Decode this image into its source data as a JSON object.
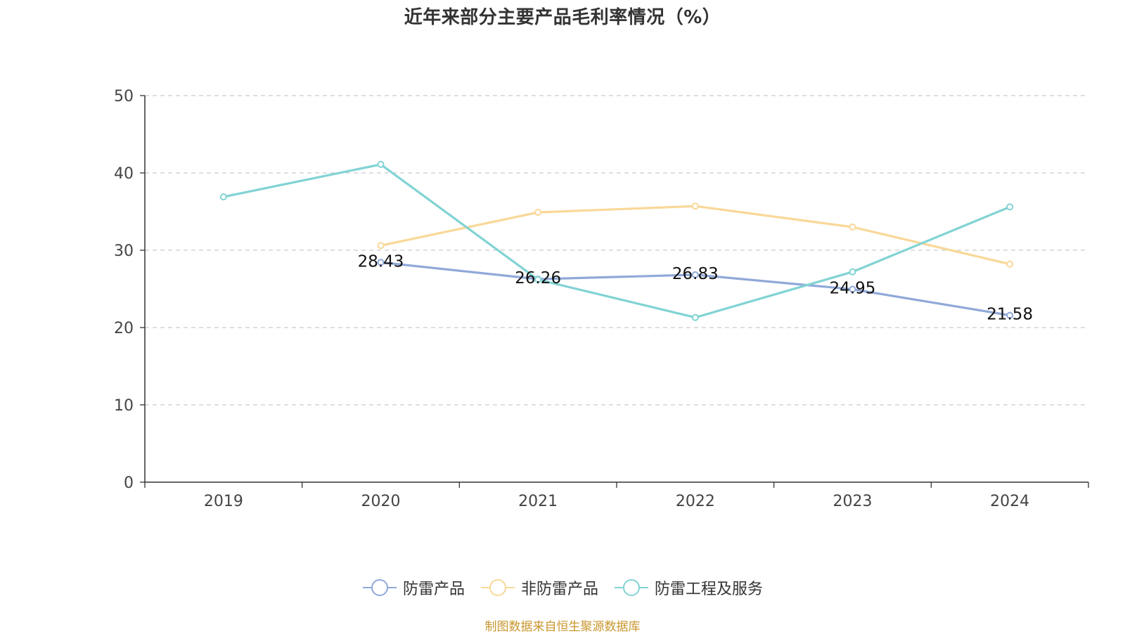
{
  "chart_data": {
    "type": "line",
    "title": "近年来部分主要产品毛利率情况（%）",
    "xlabel": "",
    "ylabel": "",
    "categories": [
      "2019",
      "2020",
      "2021",
      "2022",
      "2023",
      "2024"
    ],
    "ylim": [
      0,
      50
    ],
    "yticks": [
      0,
      10,
      20,
      30,
      40,
      50
    ],
    "grid": true,
    "legend_position": "bottom-center",
    "series": [
      {
        "name": "防雷产品",
        "color": "#8fa9d9",
        "values": [
          null,
          28.43,
          26.26,
          26.83,
          24.95,
          21.58
        ],
        "labels": [
          "",
          "28.43",
          "26.26",
          "26.83",
          "24.95",
          "21.58"
        ],
        "show_labels": true
      },
      {
        "name": "非防雷产品",
        "color": "#f9d898",
        "values": [
          null,
          30.6,
          34.9,
          35.7,
          33.0,
          28.2
        ],
        "show_labels": false
      },
      {
        "name": "防雷工程及服务",
        "color": "#82d3d4",
        "values": [
          36.9,
          41.1,
          26.2,
          21.3,
          27.2,
          35.6
        ],
        "show_labels": false
      }
    ]
  },
  "footer": {
    "source": "制图数据来自恒生聚源数据库"
  }
}
